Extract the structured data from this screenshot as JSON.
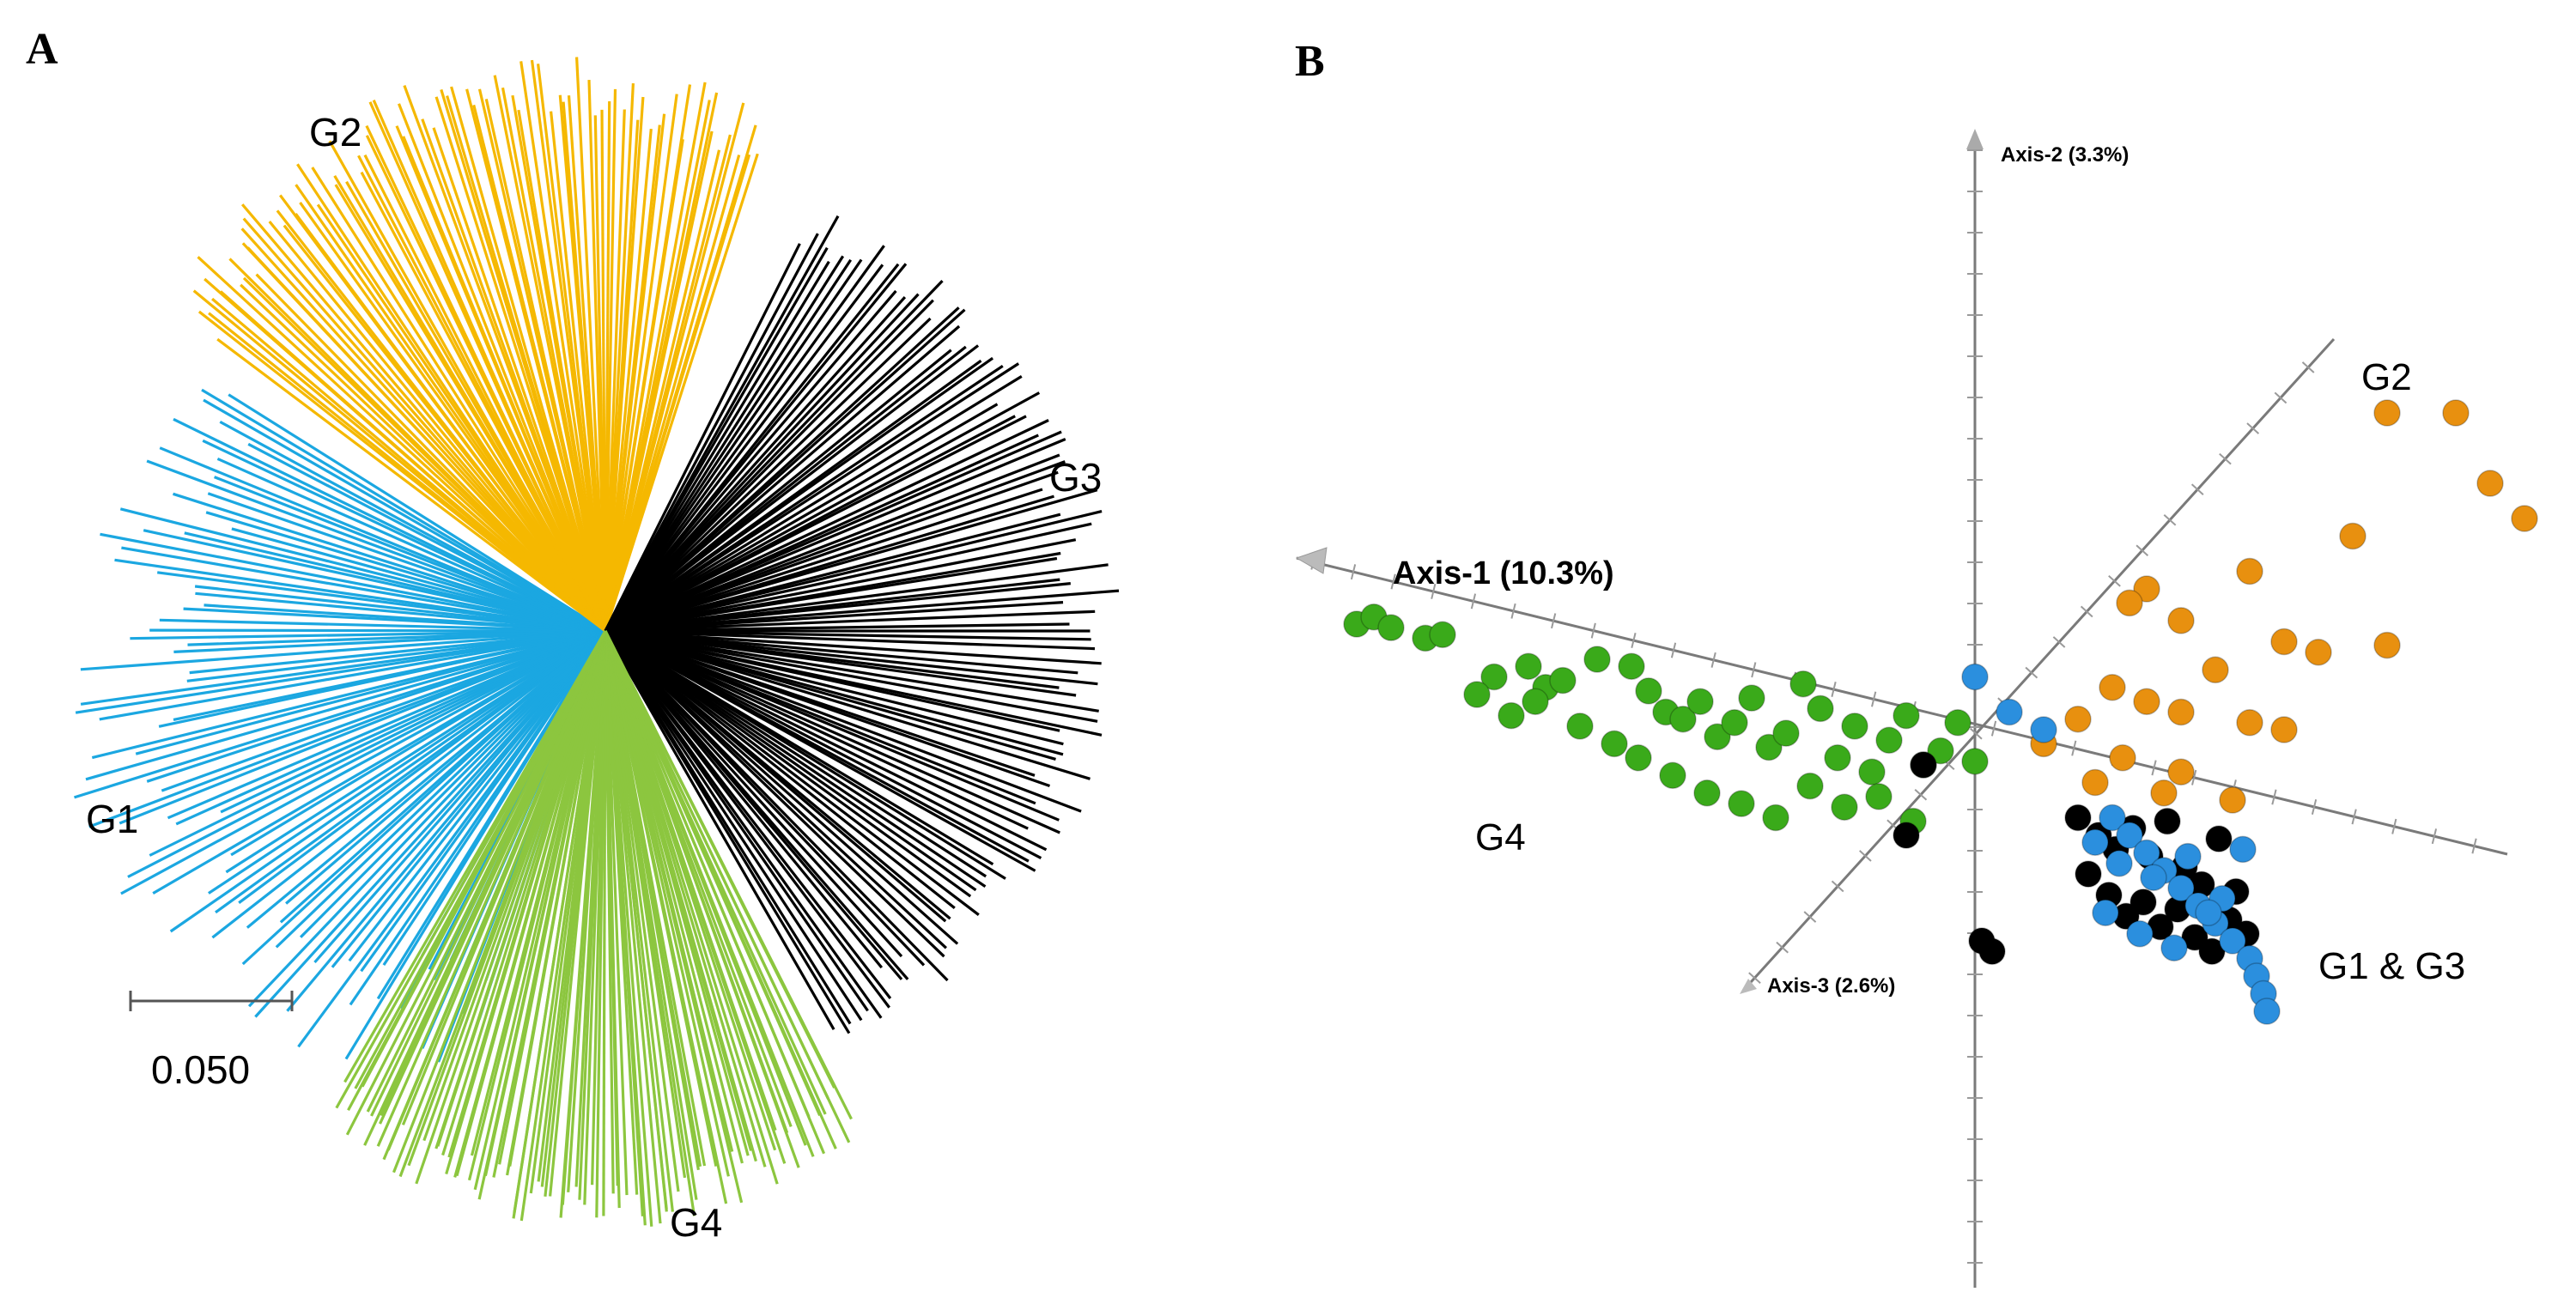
{
  "panel_a": {
    "letter": "A",
    "groups": [
      {
        "id": "G1",
        "label": "G1",
        "color": "#1ba7e1",
        "branch_count": 90
      },
      {
        "id": "G2",
        "label": "G2",
        "color": "#f5b800",
        "branch_count": 90
      },
      {
        "id": "G3",
        "label": "G3",
        "color": "#000000",
        "branch_count": 110
      },
      {
        "id": "G4",
        "label": "G4",
        "color": "#8cc63f",
        "branch_count": 100
      }
    ],
    "scale_bar": {
      "label": "0.050",
      "value": 0.05
    }
  },
  "panel_b": {
    "letter": "B",
    "axes": {
      "axis1": {
        "label": "Axis-1 (10.3%)",
        "percent": 10.3
      },
      "axis2": {
        "label": "Axis-2 (3.3%)",
        "percent": 3.3
      },
      "axis3": {
        "label": "Axis-3 (2.6%)",
        "percent": 2.6
      }
    },
    "group_labels": {
      "g2": "G2",
      "g4": "G4",
      "g1g3": "G1 & G3"
    },
    "colors": {
      "G1": "#2b8fde",
      "G2": "#e8900f",
      "G3": "#000000",
      "G4": "#3aaa1a"
    }
  },
  "chart_data": {
    "type": "scatter",
    "title": "",
    "xlabel": "Axis-1 (10.3%)",
    "ylabel": "Axis-2 (3.3%)",
    "zlabel": "Axis-3 (2.6%)",
    "series": [
      {
        "name": "G4",
        "color": "#3aaa1a",
        "points": [
          [
            -18,
            3
          ],
          [
            -17.5,
            3.2
          ],
          [
            -17,
            2.9
          ],
          [
            -16,
            2.6
          ],
          [
            -15.5,
            2.7
          ],
          [
            -14,
            1.5
          ],
          [
            -13,
            1.8
          ],
          [
            -12.5,
            1.2
          ],
          [
            -12,
            1.4
          ],
          [
            -11,
            2
          ],
          [
            -10,
            1.8
          ],
          [
            -9.5,
            1.1
          ],
          [
            -9,
            0.5
          ],
          [
            -8.5,
            0.3
          ],
          [
            -8,
            0.8
          ],
          [
            -7.5,
            -0.2
          ],
          [
            -7,
            0.2
          ],
          [
            -6.5,
            0.9
          ],
          [
            -6,
            -0.5
          ],
          [
            -5.5,
            -0.1
          ],
          [
            -5,
            1.3
          ],
          [
            -4.5,
            0.6
          ],
          [
            -4,
            -0.8
          ],
          [
            -3.5,
            0.1
          ],
          [
            -3,
            -1.2
          ],
          [
            -2.5,
            -0.3
          ],
          [
            -2,
            0.4
          ],
          [
            -1.5,
            -1
          ],
          [
            -1,
            -0.6
          ],
          [
            -0.5,
            0.2
          ],
          [
            0,
            -0.9
          ],
          [
            -14.5,
            1
          ],
          [
            -13.5,
            0.4
          ],
          [
            -12.8,
            0.8
          ],
          [
            -11.5,
            0.1
          ],
          [
            -10.5,
            -0.4
          ],
          [
            -9.8,
            -0.8
          ],
          [
            -8.8,
            -1.3
          ],
          [
            -7.8,
            -1.8
          ],
          [
            -6.8,
            -2.1
          ],
          [
            -5.8,
            -2.5
          ],
          [
            -4.8,
            -1.6
          ],
          [
            -3.8,
            -2.2
          ],
          [
            -2.8,
            -1.9
          ],
          [
            -1.8,
            -2.6
          ]
        ]
      },
      {
        "name": "G2",
        "color": "#e8900f",
        "points": [
          [
            12,
            9
          ],
          [
            14,
            9
          ],
          [
            15,
            7
          ],
          [
            16,
            6
          ],
          [
            11,
            5.5
          ],
          [
            8,
            4.5
          ],
          [
            5,
            4
          ],
          [
            4.5,
            3.6
          ],
          [
            6,
            3.1
          ],
          [
            9,
            2.5
          ],
          [
            10,
            2.2
          ],
          [
            12,
            2.4
          ],
          [
            7,
            1.7
          ],
          [
            4,
            1.2
          ],
          [
            5,
            0.8
          ],
          [
            6,
            0.5
          ],
          [
            3,
            0.3
          ],
          [
            8,
            0.2
          ],
          [
            9,
            0
          ],
          [
            2,
            -0.4
          ],
          [
            4.3,
            -0.8
          ],
          [
            6,
            -1.2
          ],
          [
            3.5,
            -1.5
          ],
          [
            5.5,
            -1.8
          ],
          [
            7.5,
            -2
          ]
        ]
      },
      {
        "name": "G1",
        "color": "#2b8fde",
        "points": [
          [
            0,
            1.5
          ],
          [
            1,
            0.5
          ],
          [
            2,
            0
          ],
          [
            4,
            -2.5
          ],
          [
            4.5,
            -3
          ],
          [
            5,
            -3.5
          ],
          [
            5.5,
            -4
          ],
          [
            6,
            -4.5
          ],
          [
            6.5,
            -5
          ],
          [
            7,
            -5.5
          ],
          [
            7.5,
            -6
          ],
          [
            8,
            -6.5
          ],
          [
            8.2,
            -7
          ],
          [
            8.4,
            -7.5
          ],
          [
            8.5,
            -8
          ],
          [
            3.5,
            -3.2
          ],
          [
            4.2,
            -3.8
          ],
          [
            5.2,
            -4.2
          ],
          [
            6.2,
            -3.6
          ],
          [
            7.2,
            -4.8
          ],
          [
            3.8,
            -5.2
          ],
          [
            4.8,
            -5.8
          ],
          [
            5.8,
            -6.2
          ],
          [
            6.8,
            -5.2
          ],
          [
            7.8,
            -3.4
          ]
        ]
      },
      {
        "name": "G3",
        "color": "#000000",
        "points": [
          [
            3,
            -2.5
          ],
          [
            3.6,
            -3
          ],
          [
            4.1,
            -3.4
          ],
          [
            4.6,
            -2.8
          ],
          [
            5.1,
            -3.6
          ],
          [
            5.6,
            -2.6
          ],
          [
            6.1,
            -3.9
          ],
          [
            6.6,
            -4.4
          ],
          [
            7.1,
            -3.1
          ],
          [
            7.6,
            -4.6
          ],
          [
            3.3,
            -4.1
          ],
          [
            3.9,
            -4.7
          ],
          [
            4.4,
            -5.3
          ],
          [
            4.9,
            -4.9
          ],
          [
            5.4,
            -5.6
          ],
          [
            5.9,
            -5.1
          ],
          [
            6.4,
            -5.9
          ],
          [
            6.9,
            -6.3
          ],
          [
            7.4,
            -5.4
          ],
          [
            7.9,
            -5.8
          ],
          [
            -1.5,
            -1
          ],
          [
            -2,
            -3
          ],
          [
            0.2,
            -6
          ],
          [
            0.5,
            -6.3
          ]
        ]
      }
    ]
  }
}
